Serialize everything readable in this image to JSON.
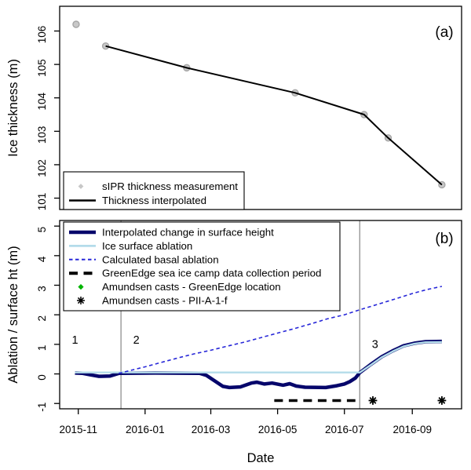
{
  "figure_type": "two-panel-time-series",
  "x_axis": {
    "label": "Date",
    "tick_labels": [
      "2015-11",
      "2016-01",
      "2016-03",
      "2016-05",
      "2016-07",
      "2016-09"
    ],
    "tick_dates": [
      "2015-11-01",
      "2016-01-01",
      "2016-03-01",
      "2016-05-01",
      "2016-07-01",
      "2016-09-01"
    ],
    "xlim": [
      "2015-10-15",
      "2016-10-16"
    ]
  },
  "chart_data": [
    {
      "type": "line",
      "panel_tag": "(a)",
      "ylabel": "Ice thickness (m)",
      "yticks": [
        101,
        102,
        103,
        104,
        105,
        106
      ],
      "ylim": [
        100.66,
        106.74
      ],
      "grid": false,
      "legend_position": "bottom-left",
      "series": [
        {
          "name": "sIPR thickness measurement",
          "type": "points",
          "marker": "circle",
          "color": "#c8c8c8",
          "edge_color": "#a6a6a6",
          "points": [
            [
              "2015-10-30",
              106.2
            ],
            [
              "2015-11-26",
              105.55
            ],
            [
              "2016-02-08",
              104.9
            ],
            [
              "2016-05-17",
              104.15
            ],
            [
              "2016-07-19",
              103.5
            ],
            [
              "2016-08-10",
              102.8
            ],
            [
              "2016-09-28",
              101.4
            ]
          ]
        },
        {
          "name": "Thickness interpolated",
          "type": "line",
          "color": "#000000",
          "width": 2,
          "points": [
            [
              "2015-11-26",
              105.55
            ],
            [
              "2016-02-08",
              104.9
            ],
            [
              "2016-05-17",
              104.15
            ],
            [
              "2016-07-19",
              103.5
            ],
            [
              "2016-08-10",
              102.8
            ],
            [
              "2016-09-28",
              101.4
            ]
          ]
        }
      ]
    },
    {
      "type": "line",
      "panel_tag": "(b)",
      "ylabel": "Ablation / surface ht (m)",
      "yticks": [
        -1,
        0,
        1,
        2,
        3,
        4,
        5
      ],
      "ylim": [
        -1.18,
        5.19
      ],
      "grid": false,
      "legend_position": "top-left",
      "vlines": [
        {
          "date": "2015-12-10",
          "color": "#909090"
        },
        {
          "date": "2016-07-15",
          "color": "#909090"
        }
      ],
      "region_labels": [
        {
          "text": "1",
          "date": "2015-10-29",
          "value": 1.02
        },
        {
          "text": "2",
          "date": "2015-12-24",
          "value": 1.02
        },
        {
          "text": "3",
          "date": "2016-07-29",
          "value": 0.88
        }
      ],
      "series": [
        {
          "name": "Interpolated change in surface height",
          "type": "line",
          "color": "#06066b",
          "width": 4.5,
          "points": [
            [
              "2015-10-29",
              0.03
            ],
            [
              "2015-11-05",
              0.02
            ],
            [
              "2015-11-12",
              -0.03
            ],
            [
              "2015-11-20",
              -0.08
            ],
            [
              "2015-11-30",
              -0.07
            ],
            [
              "2015-12-08",
              0.02
            ],
            [
              "2016-01-10",
              0.03
            ],
            [
              "2016-02-20",
              0.02
            ],
            [
              "2016-02-26",
              -0.05
            ],
            [
              "2016-03-12",
              -0.42
            ],
            [
              "2016-03-18",
              -0.46
            ],
            [
              "2016-03-28",
              -0.44
            ],
            [
              "2016-04-07",
              -0.31
            ],
            [
              "2016-04-12",
              -0.28
            ],
            [
              "2016-04-19",
              -0.34
            ],
            [
              "2016-04-26",
              -0.31
            ],
            [
              "2016-05-06",
              -0.38
            ],
            [
              "2016-05-12",
              -0.33
            ],
            [
              "2016-05-18",
              -0.41
            ],
            [
              "2016-05-26",
              -0.45
            ],
            [
              "2016-06-14",
              -0.46
            ],
            [
              "2016-06-24",
              -0.4
            ],
            [
              "2016-07-01",
              -0.34
            ],
            [
              "2016-07-06",
              -0.26
            ],
            [
              "2016-07-11",
              -0.14
            ],
            [
              "2016-07-15",
              0.04
            ],
            [
              "2016-07-25",
              0.32
            ],
            [
              "2016-08-04",
              0.58
            ],
            [
              "2016-08-14",
              0.78
            ],
            [
              "2016-08-24",
              0.95
            ],
            [
              "2016-09-03",
              1.04
            ],
            [
              "2016-09-13",
              1.09
            ],
            [
              "2016-09-28",
              1.1
            ]
          ]
        },
        {
          "name": "Ice surface ablation",
          "type": "line",
          "color": "#b4dcea",
          "width": 2.4,
          "points": [
            [
              "2015-10-29",
              0.05
            ],
            [
              "2016-07-15",
              0.05
            ],
            [
              "2016-07-25",
              0.3
            ],
            [
              "2016-08-04",
              0.56
            ],
            [
              "2016-08-14",
              0.76
            ],
            [
              "2016-08-24",
              0.93
            ],
            [
              "2016-09-03",
              1.02
            ],
            [
              "2016-09-13",
              1.07
            ],
            [
              "2016-09-28",
              1.08
            ]
          ]
        },
        {
          "name": "Calculated basal ablation",
          "type": "dashed-line",
          "color": "#2727d8",
          "width": 1.6,
          "dash": "4.5,3.5",
          "points": [
            [
              "2015-12-08",
              0.02
            ],
            [
              "2016-01-01",
              0.24
            ],
            [
              "2016-01-15",
              0.38
            ],
            [
              "2016-02-01",
              0.55
            ],
            [
              "2016-02-15",
              0.68
            ],
            [
              "2016-03-01",
              0.8
            ],
            [
              "2016-03-15",
              0.93
            ],
            [
              "2016-04-01",
              1.08
            ],
            [
              "2016-04-15",
              1.22
            ],
            [
              "2016-05-01",
              1.38
            ],
            [
              "2016-05-15",
              1.52
            ],
            [
              "2016-06-01",
              1.7
            ],
            [
              "2016-06-15",
              1.86
            ],
            [
              "2016-07-01",
              2.0
            ],
            [
              "2016-07-14",
              2.16
            ],
            [
              "2016-08-01",
              2.36
            ],
            [
              "2016-08-15",
              2.52
            ],
            [
              "2016-09-01",
              2.72
            ],
            [
              "2016-09-15",
              2.86
            ],
            [
              "2016-09-28",
              2.96
            ]
          ]
        },
        {
          "name": "GreenEdge sea ice camp data collection period",
          "type": "dashed-line",
          "color": "#000000",
          "width": 3.6,
          "dash": "11,7.5",
          "points": [
            [
              "2016-04-28",
              -0.9
            ],
            [
              "2016-07-11",
              -0.9
            ]
          ]
        },
        {
          "name": "Amundsen casts - GreenEdge location",
          "type": "points",
          "marker": "diamond",
          "color": "#00b400",
          "points": [
            [
              "2016-07-27",
              -0.9
            ],
            [
              "2016-09-28",
              -0.9
            ]
          ]
        },
        {
          "name": "Amundsen casts - PII-A-1-f",
          "type": "points",
          "marker": "asterisk",
          "color": "#000000",
          "points": [
            [
              "2016-07-27",
              -0.9
            ],
            [
              "2016-09-28",
              -0.9
            ]
          ]
        }
      ]
    }
  ]
}
